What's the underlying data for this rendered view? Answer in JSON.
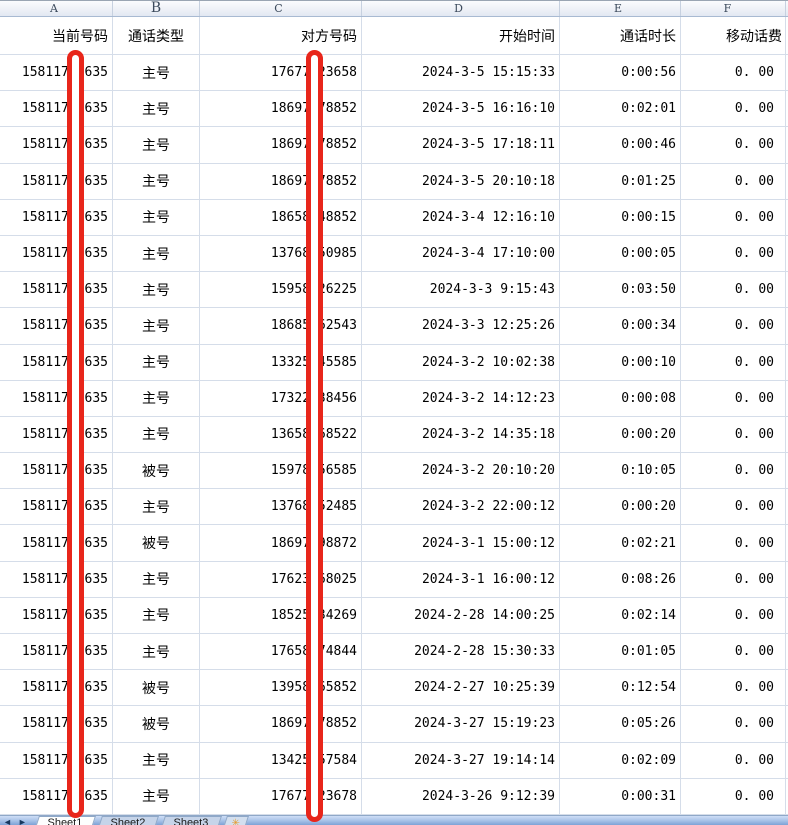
{
  "column_letters": [
    "A",
    "B",
    "C",
    "D",
    "E",
    "F"
  ],
  "table": {
    "headers": [
      "当前号码",
      "通话类型",
      "对方号码",
      "开始时间",
      "通话时长",
      "移动话费"
    ],
    "rows": [
      [
        "15811753635",
        "主号",
        "17677123658",
        "2024-3-5 15:15:33",
        "0:00:56",
        "0. 00"
      ],
      [
        "15811753635",
        "主号",
        "18697378852",
        "2024-3-5 16:16:10",
        "0:02:01",
        "0. 00"
      ],
      [
        "15811753635",
        "主号",
        "18697378852",
        "2024-3-5 17:18:11",
        "0:00:46",
        "0. 00"
      ],
      [
        "15811753635",
        "主号",
        "18697378852",
        "2024-3-5 20:10:18",
        "0:01:25",
        "0. 00"
      ],
      [
        "15811753635",
        "主号",
        "18658548852",
        "2024-3-4 12:16:10",
        "0:00:15",
        "0. 00"
      ],
      [
        "15811753635",
        "主号",
        "13768250985",
        "2024-3-4 17:10:00",
        "0:00:05",
        "0. 00"
      ],
      [
        "15811753635",
        "主号",
        "15958426225",
        "2024-3-3 9:15:43",
        "0:03:50",
        "0. 00"
      ],
      [
        "15811753635",
        "主号",
        "18685562543",
        "2024-3-3 12:25:26",
        "0:00:34",
        "0. 00"
      ],
      [
        "15811753635",
        "主号",
        "13325545585",
        "2024-3-2 10:02:38",
        "0:00:10",
        "0. 00"
      ],
      [
        "15811753635",
        "主号",
        "17322538456",
        "2024-3-2 14:12:23",
        "0:00:08",
        "0. 00"
      ],
      [
        "15811753635",
        "主号",
        "13658568522",
        "2024-3-2 14:35:18",
        "0:00:20",
        "0. 00"
      ],
      [
        "15811753635",
        "被号",
        "15978156585",
        "2024-3-2 20:10:20",
        "0:10:05",
        "0. 00"
      ],
      [
        "15811753635",
        "主号",
        "13768252485",
        "2024-3-2 22:00:12",
        "0:00:20",
        "0. 00"
      ],
      [
        "15811753635",
        "被号",
        "18697398872",
        "2024-3-1 15:00:12",
        "0:02:21",
        "0. 00"
      ],
      [
        "15811753635",
        "主号",
        "17623568025",
        "2024-3-1 16:00:12",
        "0:08:26",
        "0. 00"
      ],
      [
        "15811753635",
        "主号",
        "18525534269",
        "2024-2-28 14:00:25",
        "0:02:14",
        "0. 00"
      ],
      [
        "15811753635",
        "主号",
        "17658474844",
        "2024-2-28 15:30:33",
        "0:01:05",
        "0. 00"
      ],
      [
        "15811753635",
        "被号",
        "13958265852",
        "2024-2-27 10:25:39",
        "0:12:54",
        "0. 00"
      ],
      [
        "15811753635",
        "被号",
        "18697378852",
        "2024-3-27 15:19:23",
        "0:05:26",
        "0. 00"
      ],
      [
        "15811753635",
        "主号",
        "13425557584",
        "2024-3-27 19:14:14",
        "0:02:09",
        "0. 00"
      ],
      [
        "15811753635",
        "主号",
        "17677123678",
        "2024-3-26 9:12:39",
        "0:00:31",
        "0. 00"
      ]
    ]
  },
  "annotations": {
    "redaction_color": "#e8261b",
    "bars": [
      {
        "over_column": "A",
        "covers": "one digit of 当前号码"
      },
      {
        "over_column": "C",
        "covers": "one digit of 对方号码"
      }
    ]
  },
  "sheet_tabs": {
    "tabs": [
      "Sheet1",
      "Sheet2",
      "Sheet3"
    ],
    "active_tab": "Sheet1",
    "nav_prev_glyph": "◄",
    "nav_next_glyph": "►",
    "insert_glyph": "✳"
  }
}
